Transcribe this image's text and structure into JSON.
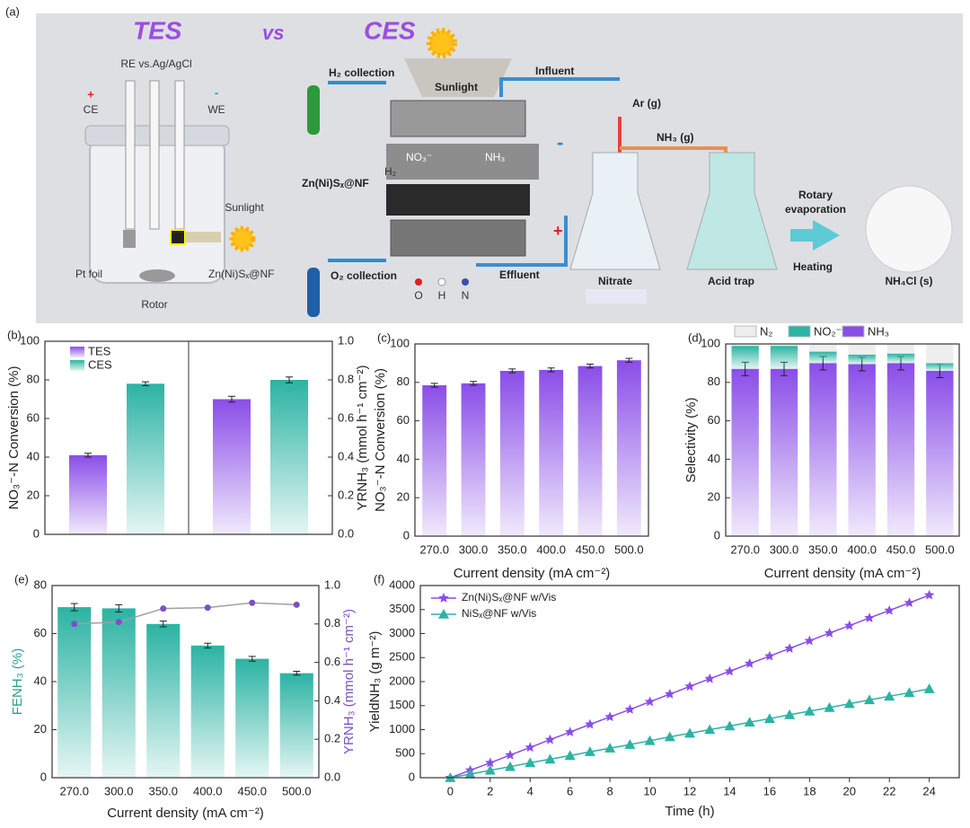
{
  "diagram": {
    "label": "(a)",
    "tes": "TES",
    "vs": "vs",
    "ces": "CES",
    "re": "RE vs.Ag/AgCl",
    "ce": "CE",
    "we": "WE",
    "plus": "+",
    "minus": "-",
    "sunlight_left": "Sunlight",
    "pt": "Pt foil",
    "electrode_left": "Zn(Ni)Sₓ@NF",
    "rotor": "Rotor",
    "sunlight_top": "Sunlight",
    "h2": "H₂ collection",
    "o2": "O₂ collection",
    "influent": "Influent",
    "effluent": "Effluent",
    "ar": "Ar (g)",
    "nh3g": "NH₃ (g)",
    "electrode_mid": "Zn(Ni)Sₓ@NF",
    "no3": "NO₃⁻",
    "nh3": "NH₃",
    "h2mol": "H₂",
    "minus2": "-",
    "plus2": "+",
    "legend_o": "O",
    "legend_h": "H",
    "legend_n": "N",
    "nitrate": "Nitrate",
    "acid": "Acid trap",
    "rotary1": "Rotary",
    "rotary2": "evaporation",
    "heating": "Heating",
    "product": "NH₄Cl (s)"
  },
  "chart_data": [
    {
      "type": "dual_bar",
      "label": "(b)",
      "ylabel": "NO₃⁻-N Conversion (%)",
      "y2label": "YRNH₃ (mmol h⁻¹ cm⁻²)",
      "ylim": [
        0,
        100
      ],
      "yticks": [
        0,
        20,
        40,
        60,
        80,
        100
      ],
      "y2lim": [
        0,
        1
      ],
      "y2ticks": [
        {
          "value": 0,
          "label": "0.0"
        },
        0.2,
        0.4,
        0.6,
        0.8,
        {
          "value": 1,
          "label": "1.0"
        }
      ],
      "series": [
        {
          "name": "TES",
          "color": "#8a4de8",
          "values": [
            41
          ],
          "errors": [
            1
          ]
        },
        {
          "name": "CES",
          "color": "#2bb3a3",
          "values": [
            78
          ],
          "errors": [
            1
          ]
        }
      ],
      "series2": [
        {
          "color": "#8a4de8",
          "values": [
            0.7
          ],
          "errors": [
            0.015
          ]
        },
        {
          "color": "#2bb3a3",
          "values": [
            0.8
          ],
          "errors": [
            0.015
          ]
        }
      ]
    },
    {
      "type": "bar",
      "label": "(c)",
      "ylabel": "NO₃⁻-N Conversion (%)",
      "xlabel": "Current density (mA cm⁻²)",
      "categories": [
        "270.0",
        "300.0",
        "350.0",
        "400.0",
        "450.0",
        "500.0"
      ],
      "values": [
        78.5,
        79.5,
        86,
        86.5,
        88.5,
        91.5
      ],
      "errors": [
        1,
        1,
        1,
        1,
        1,
        1
      ],
      "color": "#8a4de8",
      "ylim": [
        0,
        100
      ],
      "yticks": [
        0,
        20,
        40,
        60,
        80,
        100
      ]
    },
    {
      "type": "stacked_bar",
      "label": "(d)",
      "ylabel": "Selectivity (%)",
      "xlabel": "Current density (mA cm⁻²)",
      "categories": [
        "270.0",
        "300.0",
        "350.0",
        "400.0",
        "450.0",
        "500.0"
      ],
      "series": [
        {
          "name": "NH₃",
          "color": "#8a4de8",
          "values": [
            87,
            87,
            90,
            89.5,
            90,
            86
          ],
          "errors": [
            3.5,
            3.5,
            3.5,
            3.5,
            3.5,
            3.5
          ]
        },
        {
          "name": "NO₂⁻",
          "color": "#2bb3a3",
          "values": [
            12,
            12,
            6,
            5,
            5,
            4
          ]
        },
        {
          "name": "N₂",
          "color": "#eeeeee",
          "values": [
            1,
            1,
            4,
            5.5,
            5,
            10
          ]
        }
      ],
      "ylim": [
        0,
        100
      ],
      "yticks": [
        0,
        20,
        40,
        60,
        80,
        100
      ]
    },
    {
      "type": "bar_line",
      "label": "(e)",
      "ylabel": "FENH₃ (%)",
      "y2label": "YRNH₃ (mmol h⁻¹ cm⁻²)",
      "xlabel": "Current density (mA cm⁻²)",
      "categories": [
        "270.0",
        "300.0",
        "350.0",
        "400.0",
        "450.0",
        "500.0"
      ],
      "series": [
        {
          "color": "#2bb3a3",
          "values": [
            71,
            70.5,
            64,
            55,
            49.5,
            43.5
          ],
          "errors": [
            1.5,
            1.5,
            1.2,
            1,
            1,
            0.8
          ]
        },
        {
          "axis": "y2",
          "color": "#a0a0a0",
          "marker_color": "#7d4fc4",
          "values": [
            0.8,
            0.81,
            0.88,
            0.885,
            0.91,
            0.9
          ]
        }
      ],
      "ylim": [
        0,
        80
      ],
      "yticks": [
        0,
        20,
        40,
        60,
        80
      ],
      "y2lim": [
        0,
        1
      ],
      "y2ticks": [
        {
          "value": 0,
          "label": "0.0"
        },
        0.2,
        0.4,
        0.6,
        0.8,
        {
          "value": 1,
          "label": "1.0"
        }
      ]
    },
    {
      "type": "line",
      "label": "(f)",
      "ylabel": "YieldNH₃ (g m⁻²)",
      "xlabel": "Time (h)",
      "x": [
        0,
        1,
        2,
        3,
        4,
        5,
        6,
        7,
        8,
        9,
        10,
        11,
        12,
        13,
        14,
        15,
        16,
        17,
        18,
        19,
        20,
        21,
        22,
        23,
        24
      ],
      "series": [
        {
          "name": "Zn(Ni)Sₓ@NF w/Vis",
          "color": "#8a4de8",
          "marker": "star",
          "values": [
            0,
            155,
            310,
            470,
            630,
            790,
            950,
            1110,
            1265,
            1420,
            1580,
            1740,
            1900,
            2060,
            2215,
            2375,
            2530,
            2690,
            2850,
            3010,
            3165,
            3325,
            3480,
            3640,
            3800
          ]
        },
        {
          "name": "NiSₓ@NF w/Vis",
          "color": "#2bb3a3",
          "marker": "triangle",
          "values": [
            0,
            75,
            155,
            230,
            310,
            385,
            460,
            540,
            615,
            690,
            770,
            850,
            925,
            1000,
            1075,
            1155,
            1230,
            1310,
            1385,
            1460,
            1540,
            1620,
            1695,
            1770,
            1850
          ]
        }
      ],
      "xlim": [
        -1.5,
        25.5
      ],
      "xticks": [
        0,
        2,
        4,
        6,
        8,
        10,
        12,
        14,
        16,
        18,
        20,
        22,
        24
      ],
      "ylim": [
        0,
        4000
      ],
      "yticks": [
        0,
        500,
        1000,
        1500,
        2000,
        2500,
        3000,
        3500,
        4000
      ]
    }
  ]
}
